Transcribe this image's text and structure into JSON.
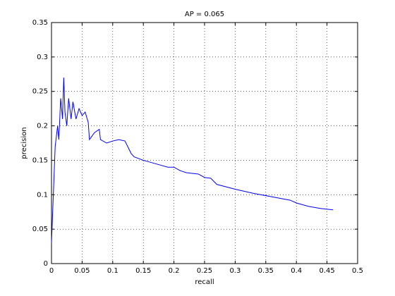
{
  "chart_data": {
    "type": "line",
    "title": "AP = 0.065",
    "xlabel": "recall",
    "ylabel": "precision",
    "x": [
      0.0,
      0.003,
      0.006,
      0.01,
      0.012,
      0.015,
      0.018,
      0.02,
      0.022,
      0.025,
      0.028,
      0.032,
      0.035,
      0.04,
      0.045,
      0.05,
      0.055,
      0.06,
      0.062,
      0.07,
      0.078,
      0.08,
      0.09,
      0.1,
      0.11,
      0.12,
      0.13,
      0.135,
      0.15,
      0.17,
      0.19,
      0.2,
      0.21,
      0.22,
      0.24,
      0.25,
      0.26,
      0.27,
      0.3,
      0.33,
      0.36,
      0.39,
      0.4,
      0.42,
      0.44,
      0.46
    ],
    "series": [
      {
        "color": "#0000ff",
        "values": [
          0.03,
          0.1,
          0.17,
          0.2,
          0.18,
          0.24,
          0.21,
          0.27,
          0.22,
          0.2,
          0.24,
          0.21,
          0.235,
          0.21,
          0.225,
          0.215,
          0.22,
          0.205,
          0.18,
          0.19,
          0.195,
          0.18,
          0.175,
          0.178,
          0.18,
          0.178,
          0.16,
          0.155,
          0.15,
          0.145,
          0.14,
          0.14,
          0.135,
          0.132,
          0.13,
          0.125,
          0.124,
          0.115,
          0.108,
          0.102,
          0.097,
          0.092,
          0.088,
          0.083,
          0.08,
          0.078
        ]
      }
    ],
    "xlim": [
      0,
      0.5
    ],
    "xticks": [
      0,
      0.05,
      0.1,
      0.15,
      0.2,
      0.25,
      0.3,
      0.35,
      0.4,
      0.45,
      0.5
    ],
    "ylim": [
      0,
      0.35
    ],
    "yticks": [
      0,
      0.05,
      0.1,
      0.15,
      0.2,
      0.25,
      0.3,
      0.35
    ],
    "grid": true
  }
}
